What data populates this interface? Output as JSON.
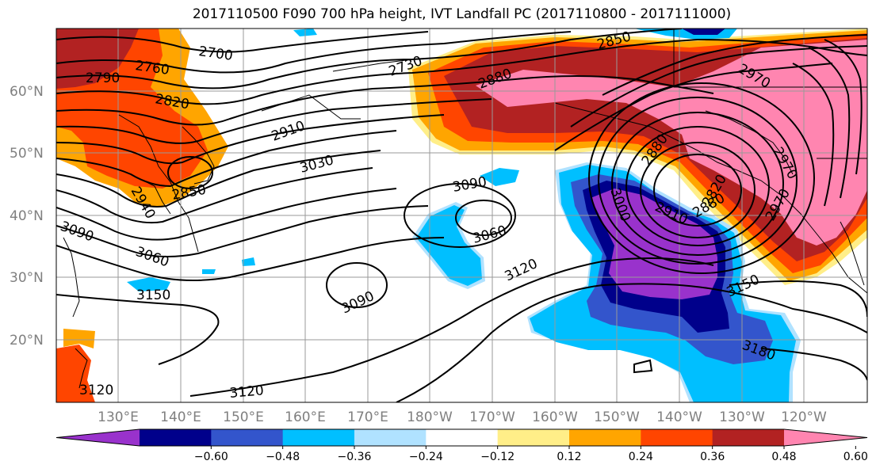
{
  "title": "2017110500 F090 700 hPa height, IVT Landfall PC (2017110800 - 2017111000)",
  "lat_labels": [
    "60°N",
    "50°N",
    "40°N",
    "30°N",
    "20°N"
  ],
  "lon_labels": [
    "130°E",
    "140°E",
    "150°E",
    "160°E",
    "170°E",
    "180°W",
    "170°W",
    "160°W",
    "150°W",
    "140°W",
    "130°W",
    "120°W"
  ],
  "colorbar": {
    "colors": [
      "#9932cc",
      "#00008b",
      "#3355cc",
      "#00bfff",
      "#b0e2ff",
      "#ffffff",
      "#ffee88",
      "#ffa500",
      "#ff4500",
      "#b22222",
      "#ff85b0"
    ],
    "ticks": [
      "−0.60",
      "−0.48",
      "−0.36",
      "−0.24",
      "−0.12",
      "0.12",
      "0.24",
      "0.36",
      "0.48",
      "0.60"
    ]
  },
  "contour_labels": [
    "2700",
    "2760",
    "2790",
    "2820",
    "2730",
    "2850",
    "2880",
    "2910",
    "3030",
    "2940",
    "2850",
    "3090",
    "3060",
    "3060",
    "3090",
    "3120",
    "3150",
    "3090",
    "3000",
    "2910",
    "2880",
    "2820",
    "2970",
    "2970",
    "3150",
    "3180",
    "3120",
    "3120",
    "2970",
    "2880"
  ],
  "colors": {
    "contour": "#000000",
    "grid": "#999999",
    "coast": "#000000"
  }
}
